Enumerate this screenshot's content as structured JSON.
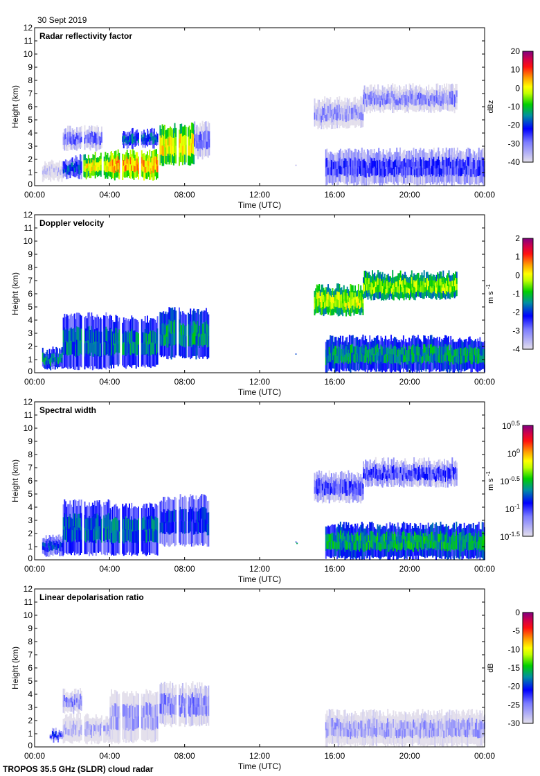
{
  "date_label": "30 Sept 2019",
  "footer": "TROPOS 35.5 GHz (SLDR) cloud radar",
  "chart_data": [
    {
      "type": "heatmap",
      "title": "Radar reflectivity factor",
      "xlabel": "Time (UTC)",
      "ylabel": "Height (km)",
      "xticks": [
        "00:00",
        "04:00",
        "08:00",
        "12:00",
        "16:00",
        "20:00",
        "00:00"
      ],
      "xlim_hours": [
        0,
        24
      ],
      "ylim": [
        0,
        12
      ],
      "yticks": [
        0,
        1,
        2,
        3,
        4,
        5,
        6,
        7,
        8,
        9,
        10,
        11,
        12
      ],
      "colorbar": {
        "unit": "dBz",
        "range": [
          -40,
          20
        ],
        "ticks": [
          "20",
          "10",
          "0",
          "-10",
          "-20",
          "-30",
          "-40"
        ]
      },
      "regions": [
        {
          "t": [
            0.4,
            1.5
          ],
          "h": [
            0.3,
            2.0
          ],
          "v": -38
        },
        {
          "t": [
            1.5,
            2.6
          ],
          "h": [
            0.5,
            2.4
          ],
          "v": -20
        },
        {
          "t": [
            1.5,
            3.6
          ],
          "h": [
            2.6,
            4.6
          ],
          "v": -30
        },
        {
          "t": [
            2.6,
            4.6
          ],
          "h": [
            0.5,
            2.6
          ],
          "v": 0
        },
        {
          "t": [
            4.0,
            6.6
          ],
          "h": [
            0.4,
            2.8
          ],
          "v": 4
        },
        {
          "t": [
            4.6,
            6.6
          ],
          "h": [
            2.8,
            4.4
          ],
          "v": -18
        },
        {
          "t": [
            6.6,
            8.5
          ],
          "h": [
            1.5,
            4.8
          ],
          "v": 0
        },
        {
          "t": [
            8.5,
            9.3
          ],
          "h": [
            2.0,
            5.0
          ],
          "v": -30
        },
        {
          "t": [
            13.9,
            14.0
          ],
          "h": [
            1.2,
            1.7
          ],
          "v": -38
        },
        {
          "t": [
            14.9,
            17.5
          ],
          "h": [
            4.3,
            6.8
          ],
          "v": -33
        },
        {
          "t": [
            17.5,
            22.5
          ],
          "h": [
            5.5,
            7.8
          ],
          "v": -32
        },
        {
          "t": [
            15.5,
            24.0
          ],
          "h": [
            0.0,
            2.9
          ],
          "v": -26
        }
      ]
    },
    {
      "type": "heatmap",
      "title": "Doppler velocity",
      "xlabel": "Time (UTC)",
      "ylabel": "Height (km)",
      "xticks": [
        "00:00",
        "04:00",
        "08:00",
        "12:00",
        "16:00",
        "20:00",
        "00:00"
      ],
      "xlim_hours": [
        0,
        24
      ],
      "ylim": [
        0,
        12
      ],
      "yticks": [
        0,
        1,
        2,
        3,
        4,
        5,
        6,
        7,
        8,
        9,
        10,
        11,
        12
      ],
      "colorbar": {
        "unit": "m s-1",
        "unit_base": "m s",
        "unit_sup": "-1",
        "range": [
          -4,
          2
        ],
        "ticks": [
          "2",
          "1",
          "0",
          "-1",
          "-2",
          "-3",
          "-4"
        ]
      },
      "regions": [
        {
          "t": [
            0.4,
            1.5
          ],
          "h": [
            0.2,
            2.0
          ],
          "v": -1.5
        },
        {
          "t": [
            1.5,
            4.0
          ],
          "h": [
            0.2,
            4.6
          ],
          "v": -1.7
        },
        {
          "t": [
            4.0,
            6.6
          ],
          "h": [
            0.3,
            4.4
          ],
          "v": -1.6
        },
        {
          "t": [
            6.6,
            9.3
          ],
          "h": [
            1.0,
            5.0
          ],
          "v": -1.4
        },
        {
          "t": [
            13.9,
            14.0
          ],
          "h": [
            1.2,
            1.7
          ],
          "v": -1.5
        },
        {
          "t": [
            14.9,
            17.5
          ],
          "h": [
            4.3,
            6.8
          ],
          "v": -0.3
        },
        {
          "t": [
            17.5,
            22.5
          ],
          "h": [
            5.5,
            7.8
          ],
          "v": -0.5
        },
        {
          "t": [
            15.5,
            24.0
          ],
          "h": [
            0.0,
            2.9
          ],
          "v": -1.4
        }
      ]
    },
    {
      "type": "heatmap",
      "title": "Spectral width",
      "xlabel": "Time (UTC)",
      "ylabel": "Height (km)",
      "xticks": [
        "00:00",
        "04:00",
        "08:00",
        "12:00",
        "16:00",
        "20:00",
        "00:00"
      ],
      "xlim_hours": [
        0,
        24
      ],
      "ylim": [
        0,
        12
      ],
      "yticks": [
        0,
        1,
        2,
        3,
        4,
        5,
        6,
        7,
        8,
        9,
        10,
        11,
        12
      ],
      "colorbar": {
        "unit": "m s-1",
        "unit_base": "m s",
        "unit_sup": "-1",
        "scale": "log",
        "range_log10": [
          -1.5,
          0.5
        ],
        "ticks": [
          {
            "base": "10",
            "exp": "0.5"
          },
          {
            "base": "10",
            "exp": "0"
          },
          {
            "base": "10",
            "exp": "-0.5"
          },
          {
            "base": "10",
            "exp": "-1"
          },
          {
            "base": "10",
            "exp": "-1.5"
          }
        ]
      },
      "regions": [
        {
          "t": [
            0.4,
            1.5
          ],
          "h": [
            0.2,
            2.0
          ],
          "v": -0.9
        },
        {
          "t": [
            1.5,
            4.0
          ],
          "h": [
            0.3,
            4.6
          ],
          "v": -0.75
        },
        {
          "t": [
            4.0,
            6.6
          ],
          "h": [
            0.3,
            4.4
          ],
          "v": -0.75
        },
        {
          "t": [
            6.6,
            9.3
          ],
          "h": [
            1.0,
            5.0
          ],
          "v": -0.9
        },
        {
          "t": [
            13.9,
            14.0
          ],
          "h": [
            1.2,
            1.7
          ],
          "v": -0.5
        },
        {
          "t": [
            14.9,
            17.5
          ],
          "h": [
            4.3,
            6.8
          ],
          "v": -1.05
        },
        {
          "t": [
            17.5,
            22.5
          ],
          "h": [
            5.5,
            7.8
          ],
          "v": -1.05
        },
        {
          "t": [
            15.5,
            24.0
          ],
          "h": [
            0.0,
            2.9
          ],
          "v": -0.6
        }
      ]
    },
    {
      "type": "heatmap",
      "title": "Linear depolarisation ratio",
      "xlabel": "Time (UTC)",
      "ylabel": "Height (km)",
      "xticks": [
        "00:00",
        "04:00",
        "08:00",
        "12:00",
        "16:00",
        "20:00",
        "00:00"
      ],
      "xlim_hours": [
        0,
        24
      ],
      "ylim": [
        0,
        12
      ],
      "yticks": [
        0,
        1,
        2,
        3,
        4,
        5,
        6,
        7,
        8,
        9,
        10,
        11,
        12
      ],
      "colorbar": {
        "unit": "dB",
        "range": [
          -30,
          0
        ],
        "ticks": [
          "0",
          "-5",
          "-10",
          "-15",
          "-20",
          "-25",
          "-30"
        ]
      },
      "regions": [
        {
          "t": [
            0.8,
            1.5
          ],
          "h": [
            0.3,
            1.5
          ],
          "v": -22
        },
        {
          "t": [
            1.5,
            2.6
          ],
          "h": [
            2.5,
            4.5
          ],
          "v": -26
        },
        {
          "t": [
            1.5,
            4.6
          ],
          "h": [
            0.2,
            2.6
          ],
          "v": -28
        },
        {
          "t": [
            4.0,
            6.6
          ],
          "h": [
            0.3,
            4.4
          ],
          "v": -27
        },
        {
          "t": [
            6.6,
            9.3
          ],
          "h": [
            1.5,
            5.0
          ],
          "v": -26
        },
        {
          "t": [
            15.5,
            24.0
          ],
          "h": [
            0.0,
            2.9
          ],
          "v": -27
        }
      ]
    }
  ]
}
